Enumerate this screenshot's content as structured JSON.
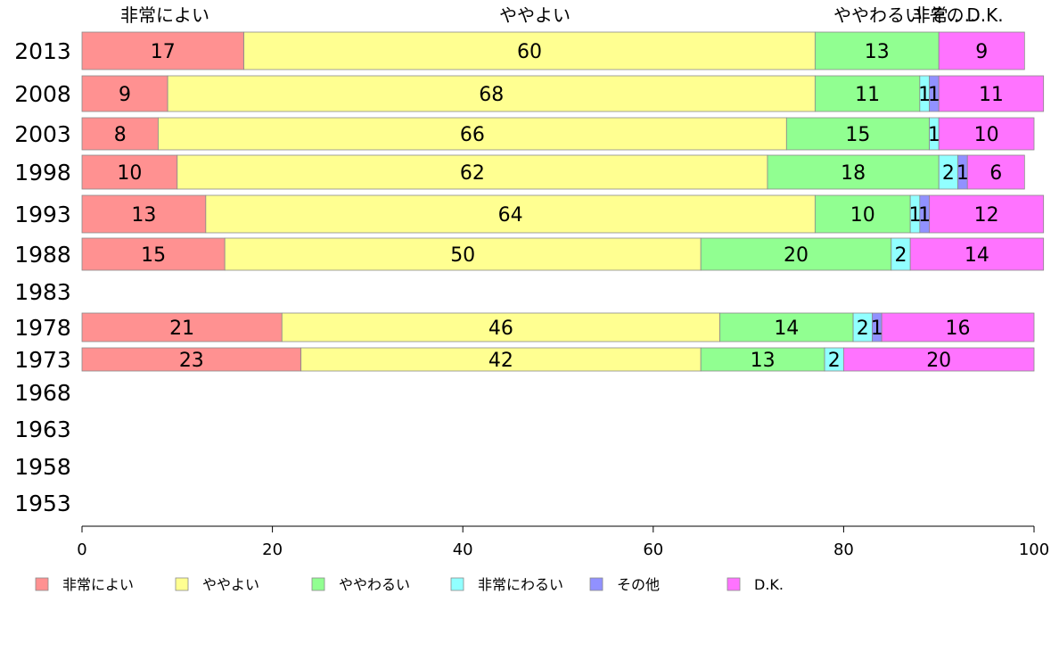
{
  "chart_data": {
    "type": "bar",
    "orientation": "horizontal",
    "stacked": true,
    "categories": [
      "2013",
      "2008",
      "2003",
      "1998",
      "1993",
      "1988",
      "1983",
      "1978",
      "1973",
      "1968",
      "1963",
      "1958",
      "1953"
    ],
    "xlim": [
      0,
      100
    ],
    "x_ticks": [
      "0",
      "20",
      "40",
      "60",
      "80",
      "100"
    ],
    "legend_position": "bottom",
    "series": [
      {
        "name": "非常によい",
        "color": "#ff9191",
        "values": [
          17,
          9,
          8,
          10,
          13,
          15,
          null,
          21,
          23,
          null,
          null,
          null,
          null
        ]
      },
      {
        "name": "ややよい",
        "color": "#ffff91",
        "values": [
          60,
          68,
          66,
          62,
          64,
          50,
          null,
          46,
          42,
          null,
          null,
          null,
          null
        ]
      },
      {
        "name": "ややわるい",
        "color": "#91ff91",
        "values": [
          13,
          11,
          15,
          18,
          10,
          20,
          null,
          14,
          13,
          null,
          null,
          null,
          null
        ]
      },
      {
        "name": "非常にわるい",
        "color": "#91ffff",
        "values": [
          0,
          1,
          1,
          2,
          1,
          2,
          null,
          2,
          2,
          null,
          null,
          null,
          null
        ]
      },
      {
        "name": "その他",
        "color": "#9191ff",
        "values": [
          0,
          1,
          0,
          1,
          1,
          0,
          null,
          1,
          0,
          null,
          null,
          null,
          null
        ]
      },
      {
        "name": "D.K.",
        "color": "#ff73ff",
        "values": [
          9,
          11,
          10,
          6,
          12,
          14,
          null,
          16,
          20,
          null,
          null,
          null,
          null
        ]
      }
    ],
    "top_labels": [
      "非常によい",
      "ややよい",
      "ややわるい",
      "非常..",
      "その..",
      "D.K."
    ]
  }
}
